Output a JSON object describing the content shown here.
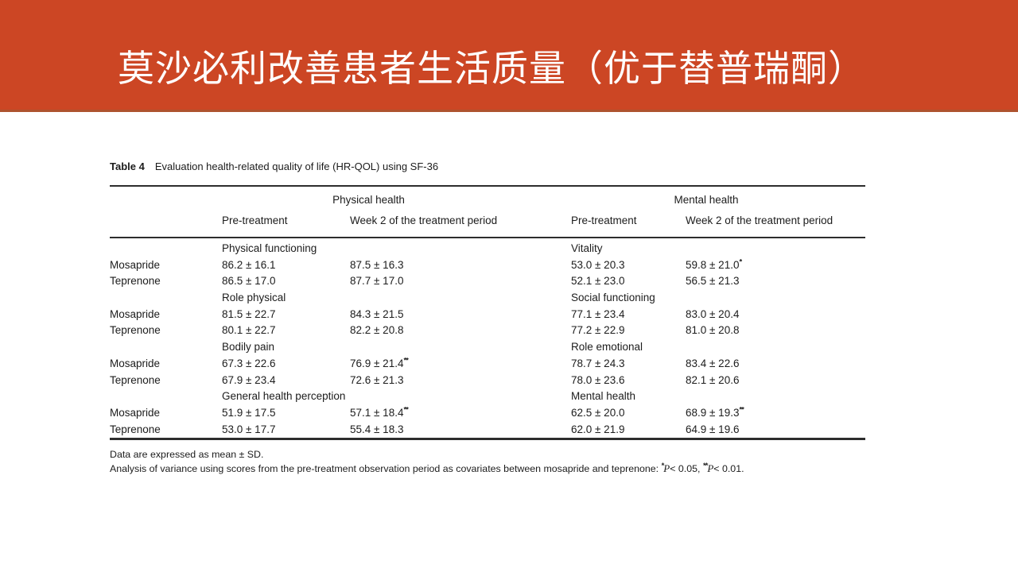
{
  "banner": {
    "title": "莫沙必利改善患者生活质量（优于替普瑞酮）",
    "bg_color": "#CC4624",
    "edge_color": "#AE532F",
    "text_color": "#FFFFFF"
  },
  "table": {
    "caption_label": "Table 4",
    "caption_text": "Evaluation health-related quality of life (HR-QOL) using SF-36",
    "groups": [
      {
        "label": "Physical health"
      },
      {
        "label": "Mental health"
      }
    ],
    "subheaders": [
      "Pre-treatment",
      "Week 2 of the treatment period",
      "Pre-treatment",
      "Week 2 of the treatment period"
    ],
    "rows": [
      {
        "type": "section",
        "labels": [
          "Physical functioning",
          "Vitality"
        ]
      },
      {
        "type": "data",
        "drug": "Mosapride",
        "cells": [
          {
            "v": "86.2 ± 16.1"
          },
          {
            "v": "87.5 ± 16.3"
          },
          {
            "v": "53.0 ± 20.3"
          },
          {
            "v": "59.8 ± 21.0",
            "mark": "*"
          }
        ]
      },
      {
        "type": "data",
        "drug": "Teprenone",
        "cells": [
          {
            "v": "86.5 ± 17.0"
          },
          {
            "v": "87.7 ± 17.0"
          },
          {
            "v": "52.1 ± 23.0"
          },
          {
            "v": "56.5 ± 21.3"
          }
        ]
      },
      {
        "type": "section",
        "labels": [
          "Role physical",
          "Social functioning"
        ]
      },
      {
        "type": "data",
        "drug": "Mosapride",
        "cells": [
          {
            "v": "81.5 ± 22.7"
          },
          {
            "v": "84.3 ± 21.5"
          },
          {
            "v": "77.1 ± 23.4"
          },
          {
            "v": "83.0 ± 20.4"
          }
        ]
      },
      {
        "type": "data",
        "drug": "Teprenone",
        "cells": [
          {
            "v": "80.1 ± 22.7"
          },
          {
            "v": "82.2 ± 20.8"
          },
          {
            "v": "77.2 ± 22.9"
          },
          {
            "v": "81.0 ± 20.8"
          }
        ]
      },
      {
        "type": "section",
        "labels": [
          "Bodily pain",
          "Role emotional"
        ]
      },
      {
        "type": "data",
        "drug": "Mosapride",
        "cells": [
          {
            "v": "67.3 ± 22.6"
          },
          {
            "v": "76.9 ± 21.4",
            "mark": "**"
          },
          {
            "v": "78.7 ± 24.3"
          },
          {
            "v": "83.4 ± 22.6"
          }
        ]
      },
      {
        "type": "data",
        "drug": "Teprenone",
        "cells": [
          {
            "v": "67.9 ± 23.4"
          },
          {
            "v": "72.6 ± 21.3"
          },
          {
            "v": "78.0 ± 23.6"
          },
          {
            "v": "82.1 ± 20.6"
          }
        ]
      },
      {
        "type": "section",
        "labels": [
          "General health perception",
          "Mental health"
        ]
      },
      {
        "type": "data",
        "drug": "Mosapride",
        "cells": [
          {
            "v": "51.9 ± 17.5"
          },
          {
            "v": "57.1 ± 18.4",
            "mark": "**"
          },
          {
            "v": "62.5 ± 20.0"
          },
          {
            "v": "68.9 ± 19.3",
            "mark": "**"
          }
        ]
      },
      {
        "type": "data",
        "drug": "Teprenone",
        "cells": [
          {
            "v": "53.0 ± 17.7"
          },
          {
            "v": "55.4 ± 18.3"
          },
          {
            "v": "62.0 ± 21.9"
          },
          {
            "v": "64.9 ± 19.6"
          }
        ]
      }
    ],
    "footnotes": {
      "line1": "Data are expressed as mean ± SD.",
      "line2_text": "Analysis of variance using scores from the pre-treatment observation period as covariates between mosapride and teprenone:",
      "sig": [
        {
          "mark": "*",
          "p": "P",
          "rest": "< 0.05,"
        },
        {
          "mark": "**",
          "p": "P",
          "rest": "< 0.01."
        }
      ]
    }
  }
}
